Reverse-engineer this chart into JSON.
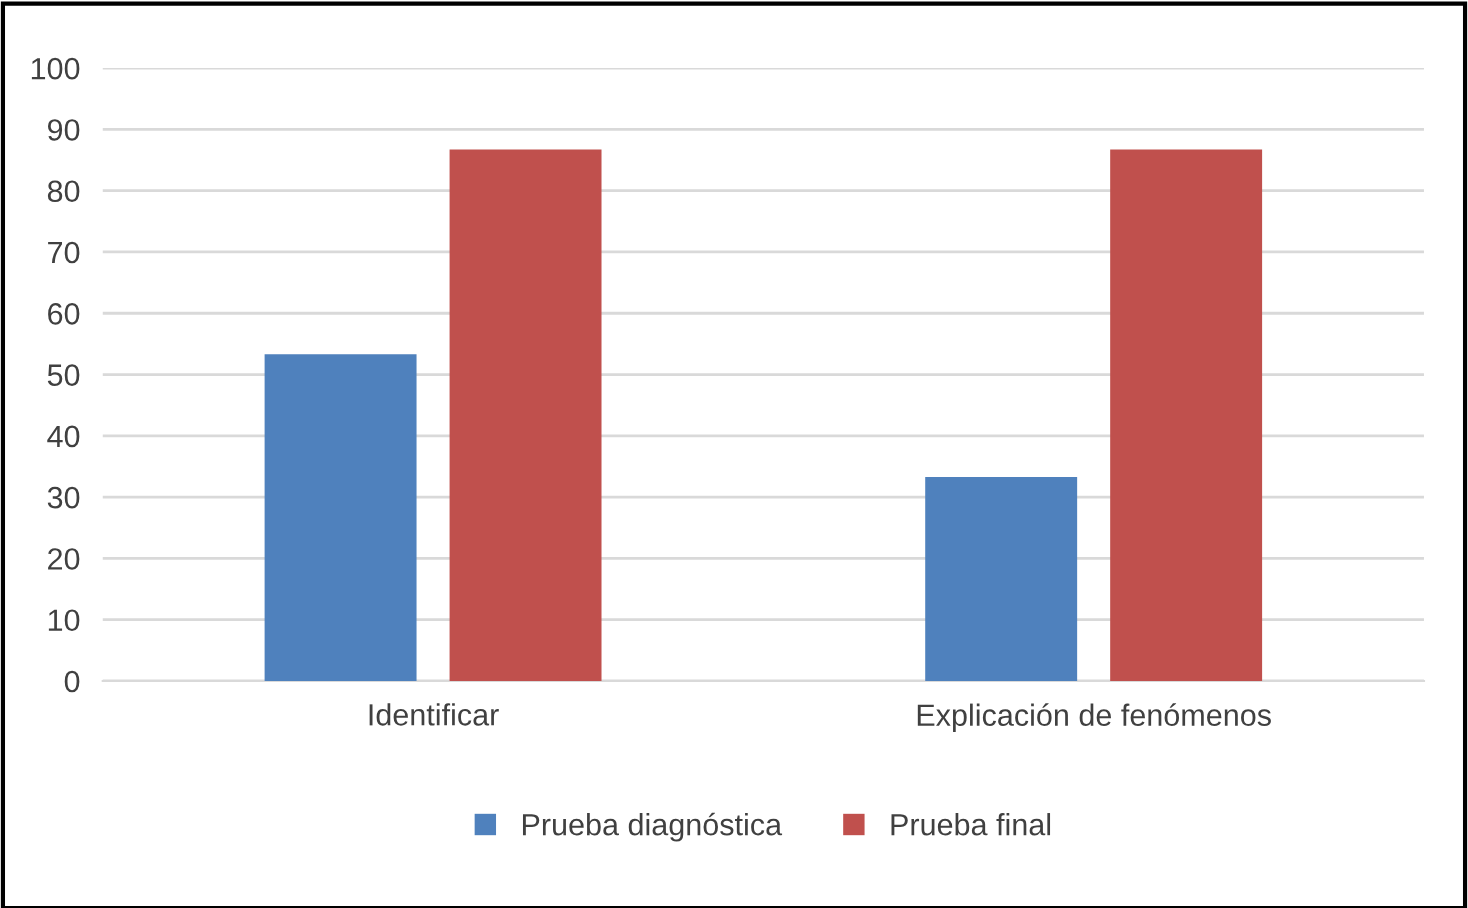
{
  "chart_data": {
    "type": "bar",
    "categories": [
      "Identificar",
      "Explicación de fenómenos"
    ],
    "series": [
      {
        "name": "Prueba diagnóstica",
        "color": "#4f81bd",
        "values": [
          53.3,
          33.3
        ]
      },
      {
        "name": "Prueba final",
        "color": "#c0504d",
        "values": [
          86.7,
          86.7
        ]
      }
    ],
    "ylim": [
      0,
      100
    ],
    "yticks": [
      0,
      10,
      20,
      30,
      40,
      50,
      60,
      70,
      80,
      90,
      100
    ],
    "grid": "y",
    "legend": "bottom"
  }
}
